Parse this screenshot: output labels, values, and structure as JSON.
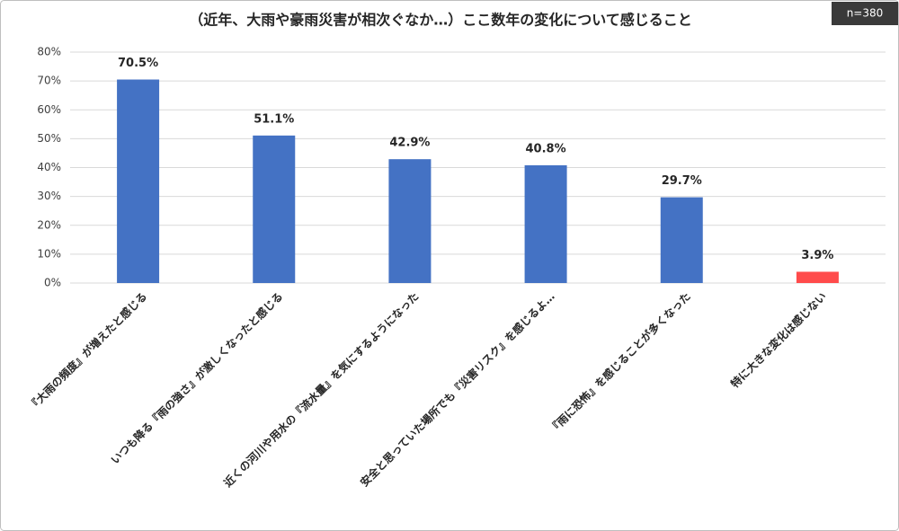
{
  "chart_data": {
    "type": "bar",
    "title": "（近年、大雨や豪雨災害が相次ぐなか…）ここ数年の変化について感じること",
    "annotation": "n=380",
    "categories": [
      "『大雨の頻度』が増えたと感じる",
      "いつも降る『雨の強さ』が激しくなったと感じる",
      "近くの河川や用水の『流水量』を気にするようになった",
      "安全と思っていた場所でも『災害リスク』を感じるよ…",
      "『雨に恐怖』を感じることが多くなった",
      "特に大きな変化は感じない"
    ],
    "values": [
      70.5,
      51.1,
      42.9,
      40.8,
      29.7,
      3.9
    ],
    "value_labels": [
      "70.5%",
      "51.1%",
      "42.9%",
      "40.8%",
      "29.7%",
      "3.9%"
    ],
    "colors": [
      "#4472c4",
      "#4472c4",
      "#4472c4",
      "#4472c4",
      "#4472c4",
      "#ff4b4b"
    ],
    "ylim": [
      0,
      80
    ],
    "yticks": [
      {
        "value": 0,
        "label": "0%"
      },
      {
        "value": 10,
        "label": "10%"
      },
      {
        "value": 20,
        "label": "20%"
      },
      {
        "value": 30,
        "label": "30%"
      },
      {
        "value": 40,
        "label": "40%"
      },
      {
        "value": 50,
        "label": "50%"
      },
      {
        "value": 60,
        "label": "60%"
      },
      {
        "value": 70,
        "label": "70%"
      },
      {
        "value": 80,
        "label": "80%"
      }
    ],
    "grid": true
  }
}
